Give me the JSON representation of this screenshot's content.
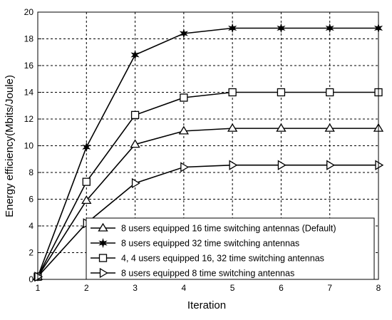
{
  "chart_data": {
    "type": "line",
    "title": "",
    "xlabel": "Iteration",
    "ylabel": "Energy efficiency(Mbits/Joule)",
    "x": [
      1,
      2,
      3,
      4,
      5,
      6,
      7,
      8
    ],
    "xlim": [
      1,
      8
    ],
    "ylim": [
      0,
      20
    ],
    "xticks": [
      "1",
      "2",
      "3",
      "4",
      "5",
      "6",
      "7",
      "8"
    ],
    "yticks": [
      "0",
      "2",
      "4",
      "6",
      "8",
      "10",
      "12",
      "14",
      "16",
      "18",
      "20"
    ],
    "grid": true,
    "legend_position": "bottom-right",
    "series": [
      {
        "name": "8 users equipped 16 time switching antennas (Default)",
        "marker": "triangle-up",
        "values": [
          0.2,
          5.9,
          10.1,
          11.1,
          11.3,
          11.3,
          11.3,
          11.3
        ]
      },
      {
        "name": "8 users equipped 32 time switching antennas",
        "marker": "star",
        "values": [
          0.2,
          9.9,
          16.8,
          18.4,
          18.8,
          18.8,
          18.8,
          18.8
        ]
      },
      {
        "name": "4, 4 users equipped 16, 32 time switching antennas",
        "marker": "square",
        "values": [
          0.2,
          7.3,
          12.3,
          13.6,
          14.0,
          14.0,
          14.0,
          14.0
        ]
      },
      {
        "name": "8 users equipped 8 time switching antennas",
        "marker": "triangle-right",
        "values": [
          0.2,
          4.2,
          7.2,
          8.4,
          8.55,
          8.55,
          8.55,
          8.55
        ]
      }
    ]
  }
}
